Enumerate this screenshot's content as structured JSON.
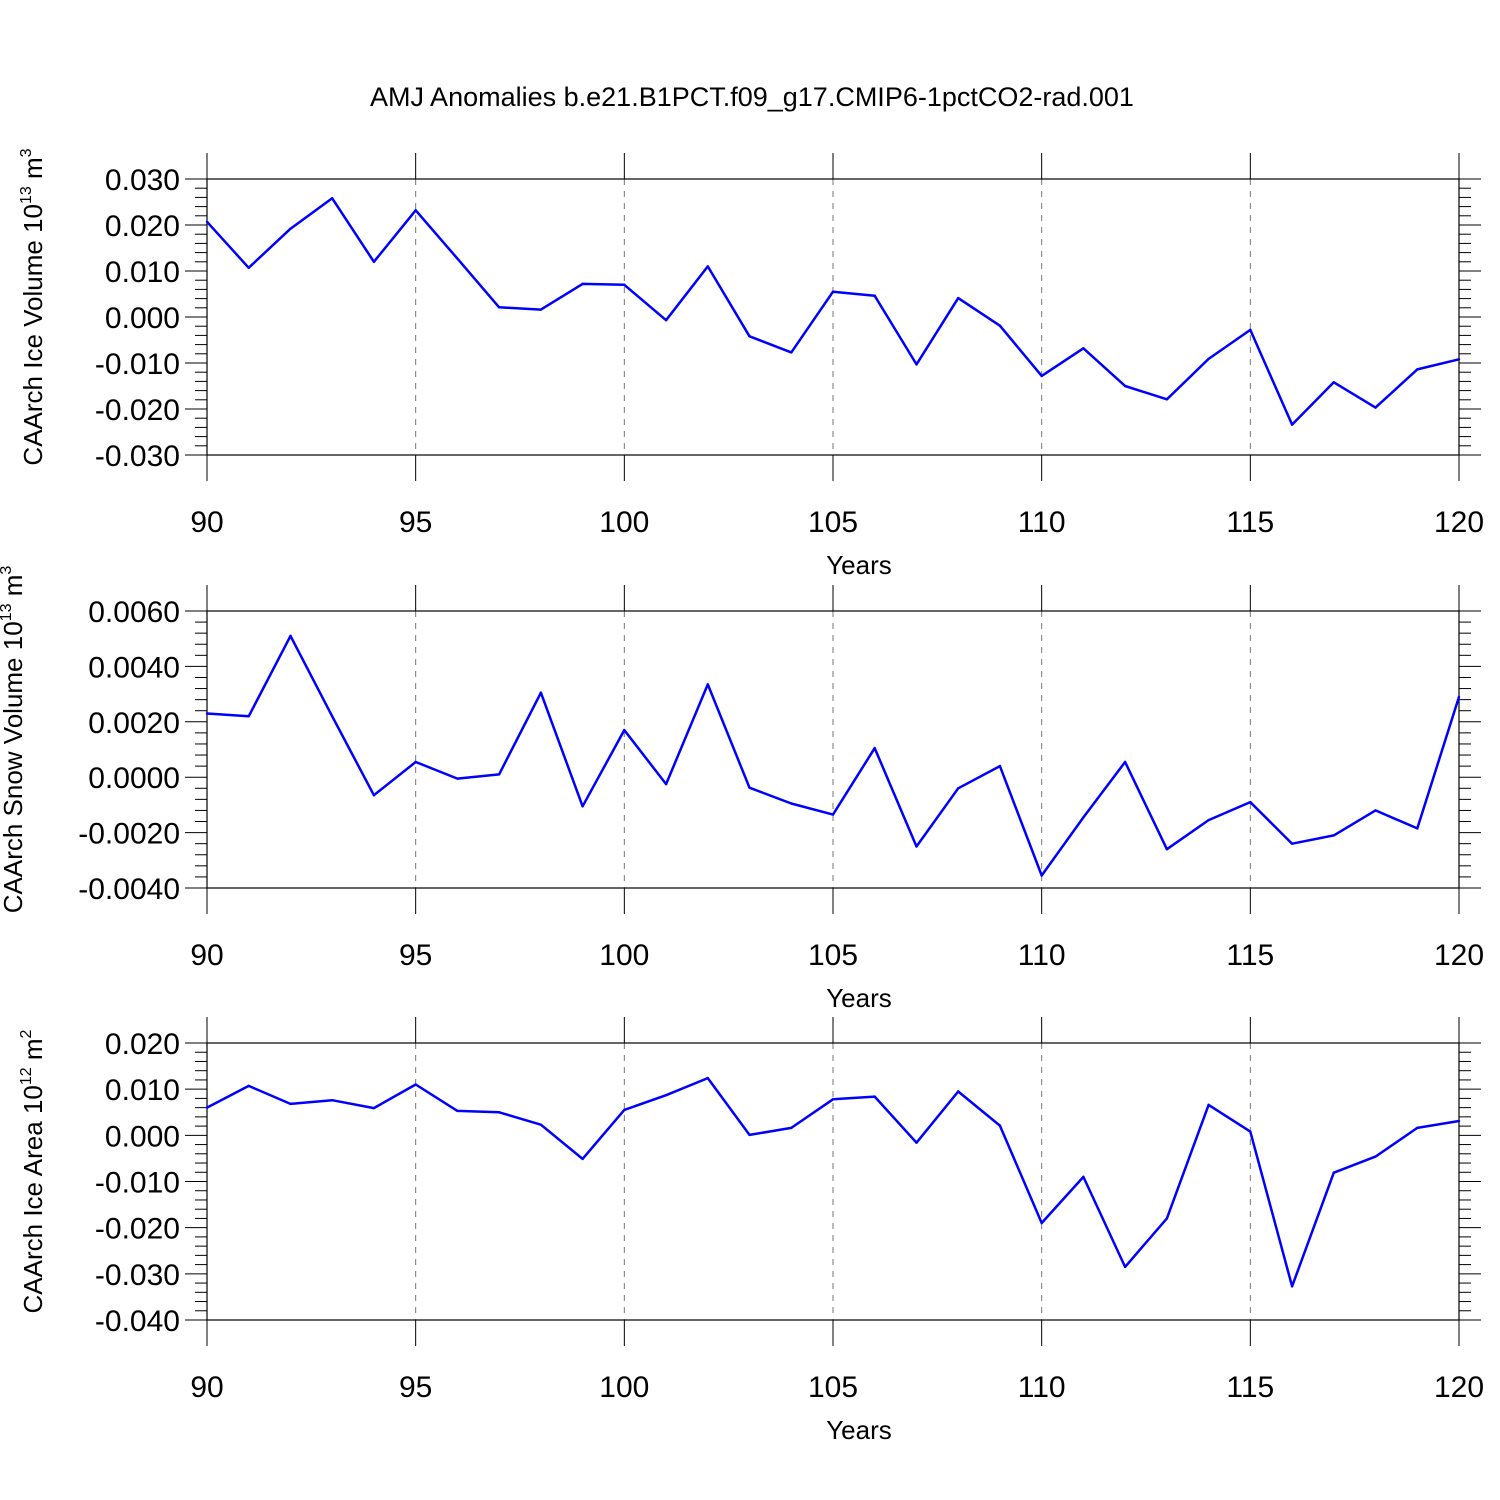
{
  "title": "AMJ Anomalies b.e21.B1PCT.f09_g17.CMIP6-1pctCO2-rad.001",
  "colors": {
    "series": "#0000ff",
    "axis": "#000000",
    "grid": "#777777"
  },
  "chart_data": [
    {
      "type": "line",
      "xlabel": "Years",
      "ylabel": {
        "text": "CAArch Ice Volume 10",
        "exp": "13",
        "unit": " m",
        "unit_exp": "3"
      },
      "xlim": [
        90,
        120
      ],
      "ylim": [
        -0.03,
        0.03
      ],
      "xticks": [
        90,
        95,
        100,
        105,
        110,
        115,
        120
      ],
      "xtick_labels": [
        "90",
        "95",
        "100",
        "105",
        "110",
        "115",
        "120"
      ],
      "yticks": [
        -0.03,
        -0.02,
        -0.01,
        0.0,
        0.01,
        0.02,
        0.03
      ],
      "ytick_labels": [
        "-0.030",
        "-0.020",
        "-0.010",
        "0.000",
        "0.010",
        "0.020",
        "0.030"
      ],
      "grid_x": true,
      "x": [
        90,
        91,
        92,
        93,
        94,
        95,
        96,
        97,
        98,
        99,
        100,
        101,
        102,
        103,
        104,
        105,
        106,
        107,
        108,
        109,
        110,
        111,
        112,
        113,
        114,
        115,
        116,
        117,
        118,
        119,
        120
      ],
      "series": [
        {
          "name": "CAArch Ice Volume",
          "values": [
            0.0207,
            0.0107,
            0.0192,
            0.0258,
            0.012,
            0.0232,
            0.0127,
            0.0021,
            0.0016,
            0.0072,
            0.007,
            -0.0007,
            0.011,
            -0.0042,
            -0.0077,
            0.0055,
            0.0046,
            -0.0103,
            0.0041,
            -0.0019,
            -0.0128,
            -0.0068,
            -0.015,
            -0.0179,
            -0.0091,
            -0.0028,
            -0.0234,
            -0.0142,
            -0.0197,
            -0.0114,
            -0.0092
          ]
        }
      ]
    },
    {
      "type": "line",
      "xlabel": "Years",
      "ylabel": {
        "text": "CAArch Snow Volume 10",
        "exp": "13",
        "unit": " m",
        "unit_exp": "3"
      },
      "xlim": [
        90,
        120
      ],
      "ylim": [
        -0.004,
        0.006
      ],
      "xticks": [
        90,
        95,
        100,
        105,
        110,
        115,
        120
      ],
      "xtick_labels": [
        "90",
        "95",
        "100",
        "105",
        "110",
        "115",
        "120"
      ],
      "yticks": [
        -0.004,
        -0.002,
        0.0,
        0.002,
        0.004,
        0.006
      ],
      "ytick_labels": [
        "-0.0040",
        "-0.0020",
        "0.0000",
        "0.0020",
        "0.0040",
        "0.0060"
      ],
      "grid_x": true,
      "x": [
        90,
        91,
        92,
        93,
        94,
        95,
        96,
        97,
        98,
        99,
        100,
        101,
        102,
        103,
        104,
        105,
        106,
        107,
        108,
        109,
        110,
        111,
        112,
        113,
        114,
        115,
        116,
        117,
        118,
        119,
        120
      ],
      "series": [
        {
          "name": "CAArch Snow Volume",
          "values": [
            0.0023,
            0.0022,
            0.0051,
            0.0022,
            -0.00065,
            0.00055,
            -5e-05,
            0.0001,
            0.00305,
            -0.00105,
            0.0017,
            -0.00025,
            0.00335,
            -0.00038,
            -0.00095,
            -0.00135,
            0.00105,
            -0.0025,
            -0.0004,
            0.0004,
            -0.00355,
            -0.00145,
            0.00055,
            -0.0026,
            -0.00155,
            -0.0009,
            -0.0024,
            -0.0021,
            -0.0012,
            -0.00185,
            0.0029
          ]
        }
      ]
    },
    {
      "type": "line",
      "xlabel": "Years",
      "ylabel": {
        "text": "CAArch Ice Area 10",
        "exp": "12",
        "unit": " m",
        "unit_exp": "2"
      },
      "xlim": [
        90,
        120
      ],
      "ylim": [
        -0.04,
        0.02
      ],
      "xticks": [
        90,
        95,
        100,
        105,
        110,
        115,
        120
      ],
      "xtick_labels": [
        "90",
        "95",
        "100",
        "105",
        "110",
        "115",
        "120"
      ],
      "yticks": [
        -0.04,
        -0.03,
        -0.02,
        -0.01,
        0.0,
        0.01,
        0.02
      ],
      "ytick_labels": [
        "-0.040",
        "-0.030",
        "-0.020",
        "-0.010",
        "0.000",
        "0.010",
        "0.020"
      ],
      "grid_x": true,
      "x": [
        90,
        91,
        92,
        93,
        94,
        95,
        96,
        97,
        98,
        99,
        100,
        101,
        102,
        103,
        104,
        105,
        106,
        107,
        108,
        109,
        110,
        111,
        112,
        113,
        114,
        115,
        116,
        117,
        118,
        119,
        120
      ],
      "series": [
        {
          "name": "CAArch Ice Area",
          "values": [
            0.006,
            0.0107,
            0.0068,
            0.0076,
            0.0059,
            0.011,
            0.0053,
            0.005,
            0.0023,
            -0.0051,
            0.0055,
            0.0087,
            0.0124,
            0.0001,
            0.0016,
            0.0078,
            0.0084,
            -0.0016,
            0.0095,
            0.0021,
            -0.019,
            -0.009,
            -0.0285,
            -0.018,
            0.0066,
            0.0008,
            -0.0327,
            -0.0081,
            -0.0046,
            0.0016,
            0.0031
          ]
        }
      ]
    }
  ]
}
